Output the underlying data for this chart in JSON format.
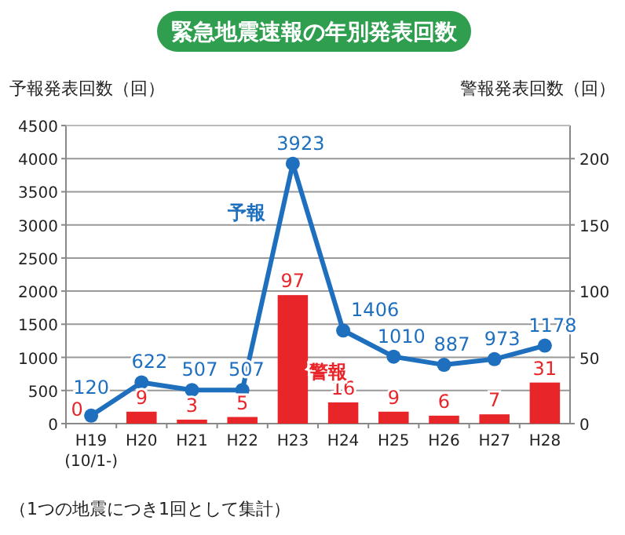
{
  "chart_data": {
    "type": "bar",
    "title": "緊急地震速報の年別発表回数",
    "ylabel": "予報発表回数（回）",
    "y2label": "警報発表回数（回）",
    "categories": [
      "H19\n(10/1-)",
      "H20",
      "H21",
      "H22",
      "H23",
      "H24",
      "H25",
      "H26",
      "H27",
      "H28"
    ],
    "series": [
      {
        "name": "予報",
        "type": "line",
        "color": "#1f6fbf",
        "marker": "circle",
        "values": [
          120,
          622,
          507,
          507,
          3923,
          1406,
          1010,
          887,
          973,
          1178
        ]
      },
      {
        "name": "警報",
        "axis": "y2",
        "color": "#e8262a",
        "values": [
          0,
          9,
          3,
          5,
          97,
          16,
          9,
          6,
          7,
          31
        ]
      }
    ],
    "ylim": [
      0,
      4500
    ],
    "yticks": [
      0,
      500,
      1000,
      1500,
      2000,
      2500,
      3000,
      3500,
      4000,
      4500
    ],
    "y2lim": [
      0,
      225
    ],
    "y2ticks": [
      0,
      50,
      100,
      150,
      200
    ],
    "grid": "y",
    "legend": false,
    "data_labels": true,
    "annotations": [
      "（1つの地震につき1回として集計）"
    ]
  }
}
